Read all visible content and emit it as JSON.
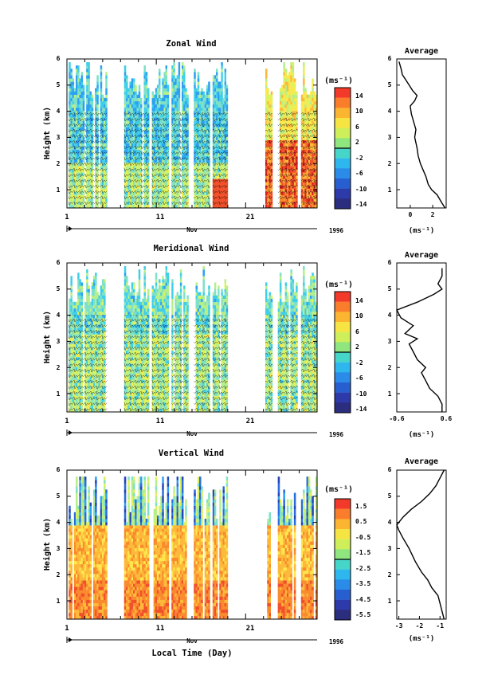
{
  "chart_data": [
    {
      "type": "heatmap",
      "title": "Zonal Wind",
      "ylabel": "Height (km)",
      "x_ticks": [
        "1",
        "11",
        "21"
      ],
      "month_label": "Nov",
      "year_label": "1996",
      "xlim_day": [
        1,
        29
      ],
      "ylim_km": [
        0.3,
        6
      ],
      "y_ticks": [
        "1",
        "2",
        "3",
        "4",
        "5",
        "6"
      ],
      "colorbar_unit": "(ms⁻¹)",
      "colorbar_range": [
        -14,
        14
      ],
      "colorbar_ticks": [
        "14",
        "10",
        "6",
        "2",
        "-2",
        "-6",
        "-10",
        "-14"
      ],
      "colorbar_values": [
        14,
        10,
        6,
        2,
        -2,
        -6,
        -10,
        -14
      ],
      "observation_day_ranges": [
        [
          1.2,
          5.5
        ],
        [
          7.4,
          10.2
        ],
        [
          10.5,
          12.4
        ],
        [
          12.7,
          14.6
        ],
        [
          15.2,
          17.0
        ],
        [
          17.3,
          19.0
        ],
        [
          23.2,
          24.0
        ],
        [
          24.6,
          26.8
        ],
        [
          27.2,
          29.0
        ]
      ],
      "profile": {
        "title": "Average",
        "xlabel": "(ms⁻¹)",
        "x_ticks": [
          "0",
          "2"
        ],
        "x_tick_values": [
          0,
          2
        ],
        "xlim": [
          -1.2,
          3.2
        ],
        "ylim_km": [
          0.3,
          6
        ],
        "y_ticks": [
          "1",
          "2",
          "3",
          "4",
          "5",
          "6"
        ],
        "height_km": [
          0.3,
          0.5,
          0.8,
          1.0,
          1.2,
          1.5,
          1.8,
          2.0,
          2.3,
          2.6,
          3.0,
          3.3,
          3.6,
          3.9,
          4.2,
          4.4,
          4.6,
          4.8,
          5.0,
          5.2,
          5.4,
          5.6,
          5.9
        ],
        "wind_ms": [
          3.1,
          2.8,
          2.4,
          1.9,
          1.6,
          1.4,
          1.1,
          0.9,
          0.7,
          0.6,
          0.4,
          0.5,
          0.3,
          0.1,
          0.0,
          0.4,
          0.6,
          0.2,
          -0.1,
          -0.4,
          -0.7,
          -0.8,
          -1.0
        ]
      }
    },
    {
      "type": "heatmap",
      "title": "Meridional Wind",
      "ylabel": "Height (km)",
      "x_ticks": [
        "1",
        "11",
        "21"
      ],
      "month_label": "Nov",
      "year_label": "1996",
      "xlim_day": [
        1,
        29
      ],
      "ylim_km": [
        0.3,
        6
      ],
      "y_ticks": [
        "1",
        "2",
        "3",
        "4",
        "5",
        "6"
      ],
      "colorbar_unit": "(ms⁻¹)",
      "colorbar_range": [
        -14,
        14
      ],
      "colorbar_ticks": [
        "14",
        "10",
        "6",
        "2",
        "-2",
        "-6",
        "-10",
        "-14"
      ],
      "colorbar_values": [
        14,
        10,
        6,
        2,
        -2,
        -6,
        -10,
        -14
      ],
      "observation_day_ranges": [
        [
          1.2,
          5.5
        ],
        [
          7.4,
          10.2
        ],
        [
          10.5,
          12.4
        ],
        [
          12.7,
          14.6
        ],
        [
          15.2,
          17.0
        ],
        [
          17.3,
          19.0
        ],
        [
          23.2,
          24.0
        ],
        [
          24.6,
          26.8
        ],
        [
          27.2,
          29.0
        ]
      ],
      "profile": {
        "title": "Average",
        "xlabel": "(ms⁻¹)",
        "x_ticks": [
          "-0.6",
          "0.6"
        ],
        "x_tick_values": [
          -0.6,
          0.6
        ],
        "xlim": [
          -0.6,
          0.6
        ],
        "ylim_km": [
          0.3,
          6
        ],
        "y_ticks": [
          "1",
          "2",
          "3",
          "4",
          "5",
          "6"
        ],
        "height_km": [
          0.3,
          0.6,
          0.9,
          1.2,
          1.5,
          1.8,
          2.0,
          2.3,
          2.6,
          2.9,
          3.1,
          3.3,
          3.6,
          3.9,
          4.2,
          4.5,
          4.8,
          5.0,
          5.2,
          5.5,
          5.8
        ],
        "wind_ms": [
          0.5,
          0.5,
          0.4,
          0.2,
          0.1,
          0.0,
          0.1,
          -0.1,
          -0.2,
          -0.3,
          -0.1,
          -0.4,
          -0.2,
          -0.5,
          -0.6,
          -0.1,
          0.3,
          0.5,
          0.4,
          0.5,
          0.5
        ]
      }
    },
    {
      "type": "heatmap",
      "title": "Vertical Wind",
      "ylabel": "Height (km)",
      "xlabel": "Local Time (Day)",
      "x_ticks": [
        "1",
        "11",
        "21"
      ],
      "month_label": "Nov",
      "year_label": "1996",
      "xlim_day": [
        1,
        29
      ],
      "ylim_km": [
        0.3,
        6
      ],
      "y_ticks": [
        "1",
        "2",
        "3",
        "4",
        "5",
        "6"
      ],
      "colorbar_unit": "(ms⁻¹)",
      "colorbar_range": [
        -5.5,
        1.5
      ],
      "colorbar_ticks": [
        "1.5",
        "0.5",
        "-0.5",
        "-1.5",
        "-2.5",
        "-3.5",
        "-4.5",
        "-5.5"
      ],
      "colorbar_values": [
        1.5,
        0.5,
        -0.5,
        -1.5,
        -2.5,
        -3.5,
        -4.5,
        -5.5
      ],
      "observation_day_ranges": [
        [
          1.2,
          5.5
        ],
        [
          7.4,
          10.2
        ],
        [
          10.5,
          12.4
        ],
        [
          12.7,
          14.6
        ],
        [
          15.2,
          17.0
        ],
        [
          17.3,
          19.0
        ],
        [
          23.2,
          24.0
        ],
        [
          24.6,
          26.8
        ],
        [
          27.2,
          29.0
        ]
      ],
      "profile": {
        "title": "Average",
        "xlabel": "(ms⁻¹)",
        "x_ticks": [
          "-3",
          "-2",
          "-1"
        ],
        "x_tick_values": [
          -3,
          -2,
          -1
        ],
        "xlim": [
          -3.1,
          -0.7
        ],
        "ylim_km": [
          0.3,
          6
        ],
        "y_ticks": [
          "1",
          "2",
          "3",
          "4",
          "5",
          "6"
        ],
        "height_km": [
          0.3,
          0.6,
          0.9,
          1.2,
          1.5,
          1.8,
          2.1,
          2.5,
          3.0,
          3.4,
          3.7,
          3.9,
          4.0,
          4.2,
          4.5,
          4.8,
          5.1,
          5.4,
          5.7,
          6.0
        ],
        "wind_ms": [
          -0.8,
          -0.9,
          -1.0,
          -1.1,
          -1.4,
          -1.6,
          -1.9,
          -2.2,
          -2.5,
          -2.8,
          -3.0,
          -3.1,
          -3.0,
          -2.8,
          -2.4,
          -1.9,
          -1.5,
          -1.2,
          -1.0,
          -0.8
        ]
      }
    }
  ]
}
